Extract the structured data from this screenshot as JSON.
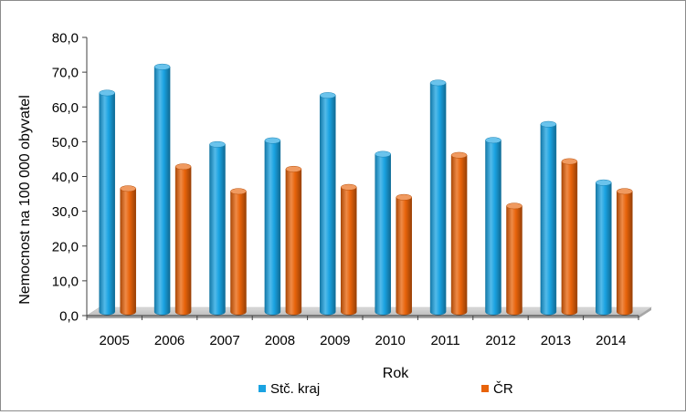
{
  "chart_data": {
    "type": "bar",
    "categories": [
      "2005",
      "2006",
      "2007",
      "2008",
      "2009",
      "2010",
      "2011",
      "2012",
      "2013",
      "2014"
    ],
    "series": [
      {
        "name": "Stč. kraj",
        "color": "#1aa3e2",
        "values": [
          63.5,
          71.0,
          48.7,
          49.8,
          62.8,
          45.9,
          66.4,
          49.9,
          54.5,
          37.7
        ]
      },
      {
        "name": "ČR",
        "color": "#e8630a",
        "values": [
          36.0,
          42.3,
          35.2,
          41.6,
          36.4,
          33.5,
          45.6,
          31.0,
          43.8,
          35.2
        ]
      }
    ],
    "xlabel": "Rok",
    "ylabel": "Nemocnost na 100 000 obyvatel",
    "ylim": [
      0,
      80
    ],
    "yticks": [
      "0,0",
      "10,0",
      "20,0",
      "30,0",
      "40,0",
      "50,0",
      "60,0",
      "70,0",
      "80,0"
    ],
    "grid": false,
    "legend_position": "bottom"
  }
}
